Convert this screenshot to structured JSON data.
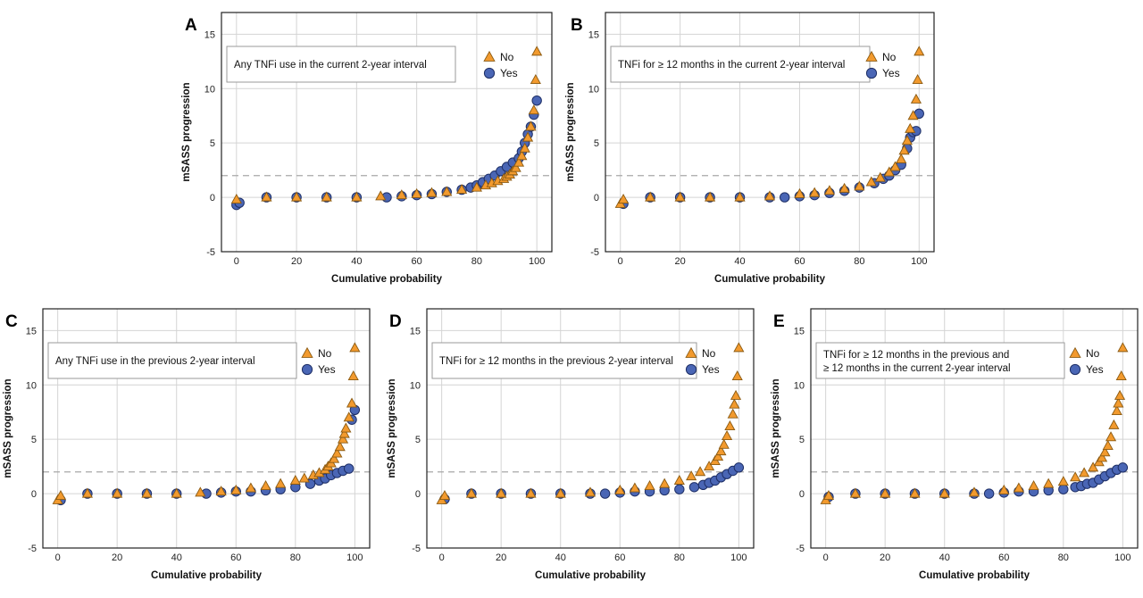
{
  "figure": {
    "colors": {
      "no_fill": "#F29A2E",
      "no_stroke": "#8A5A12",
      "yes_fill": "#4A66B5",
      "yes_stroke": "#1E2F66",
      "grid": "#D4D4D4",
      "threshold": "#A8A8A8",
      "frame": "#222222"
    }
  },
  "chart_data": [
    {
      "type": "scatter",
      "panel_label": "A",
      "annotation": "Any TNFi use in the current 2-year interval",
      "xlabel": "Cumulative probability",
      "ylabel": "mSASS progression",
      "xlim": [
        -5,
        105
      ],
      "ylim": [
        -5,
        17
      ],
      "x_ticks": [
        "0",
        "20",
        "40",
        "60",
        "80",
        "100"
      ],
      "y_ticks": [
        "-5",
        "0",
        "5",
        "10",
        "15"
      ],
      "grid": true,
      "legend": "top-right",
      "threshold_y": 2,
      "series": [
        {
          "name": "No",
          "marker": "triangle",
          "x": [
            0,
            10,
            20,
            30,
            40,
            48,
            55,
            60,
            65,
            70,
            75,
            80,
            83,
            85,
            87,
            89,
            90,
            91,
            92,
            93,
            94,
            95,
            96,
            97,
            98,
            99,
            99.6,
            100
          ],
          "y": [
            -0.2,
            0,
            0,
            0,
            0,
            0.1,
            0.2,
            0.3,
            0.4,
            0.5,
            0.7,
            0.9,
            1.1,
            1.3,
            1.5,
            1.7,
            1.9,
            2.1,
            2.4,
            2.7,
            3.2,
            3.8,
            4.5,
            5.5,
            6.5,
            8.0,
            10.8,
            13.4
          ]
        },
        {
          "name": "Yes",
          "marker": "circle",
          "x": [
            0,
            1,
            10,
            20,
            30,
            40,
            50,
            55,
            60,
            65,
            70,
            75,
            78,
            80,
            82,
            84,
            86,
            88,
            90,
            92,
            94,
            95,
            96,
            97,
            98,
            99,
            100
          ],
          "y": [
            -0.7,
            -0.5,
            0,
            0,
            0,
            0,
            0,
            0.1,
            0.2,
            0.3,
            0.5,
            0.7,
            0.9,
            1.1,
            1.4,
            1.7,
            2.0,
            2.4,
            2.8,
            3.2,
            3.6,
            4.2,
            5.0,
            5.8,
            6.5,
            7.6,
            8.9
          ]
        }
      ]
    },
    {
      "type": "scatter",
      "panel_label": "B",
      "annotation": "TNFi for ≥ 12 months in the current 2-year interval",
      "xlabel": "Cumulative probability",
      "ylabel": "mSASS progression",
      "xlim": [
        -5,
        105
      ],
      "ylim": [
        -5,
        17
      ],
      "x_ticks": [
        "0",
        "20",
        "40",
        "60",
        "80",
        "100"
      ],
      "y_ticks": [
        "-5",
        "0",
        "5",
        "10",
        "15"
      ],
      "grid": true,
      "legend": "top-right",
      "threshold_y": 2,
      "series": [
        {
          "name": "No",
          "marker": "triangle",
          "x": [
            0,
            1,
            10,
            20,
            30,
            40,
            50,
            60,
            65,
            70,
            75,
            80,
            84,
            87,
            90,
            92,
            94,
            95,
            96,
            97,
            98,
            99,
            99.5,
            100
          ],
          "y": [
            -0.6,
            -0.2,
            0,
            0,
            0,
            0,
            0.1,
            0.3,
            0.4,
            0.6,
            0.8,
            1.0,
            1.4,
            1.8,
            2.3,
            2.8,
            3.5,
            4.3,
            5.2,
            6.3,
            7.5,
            9.0,
            10.8,
            13.4
          ]
        },
        {
          "name": "Yes",
          "marker": "circle",
          "x": [
            1,
            10,
            20,
            30,
            40,
            50,
            55,
            60,
            65,
            70,
            75,
            80,
            85,
            88,
            90,
            92,
            94,
            96,
            97,
            98,
            99,
            100
          ],
          "y": [
            -0.6,
            0,
            0,
            0,
            0,
            0,
            0,
            0.1,
            0.2,
            0.4,
            0.6,
            0.9,
            1.3,
            1.7,
            2.0,
            2.5,
            3.0,
            4.5,
            5.5,
            6.0,
            6.1,
            7.7
          ]
        }
      ]
    },
    {
      "type": "scatter",
      "panel_label": "C",
      "annotation": "Any TNFi use in the previous 2-year interval",
      "xlabel": "Cumulative probability",
      "ylabel": "mSASS progression",
      "xlim": [
        -5,
        105
      ],
      "ylim": [
        -5,
        17
      ],
      "x_ticks": [
        "0",
        "20",
        "40",
        "60",
        "80",
        "100"
      ],
      "y_ticks": [
        "-5",
        "0",
        "5",
        "10",
        "15"
      ],
      "grid": true,
      "legend": "top-right",
      "threshold_y": 2,
      "series": [
        {
          "name": "No",
          "marker": "triangle",
          "x": [
            0,
            1,
            10,
            20,
            30,
            40,
            48,
            55,
            60,
            65,
            70,
            75,
            80,
            83,
            86,
            88,
            90,
            91,
            92,
            93,
            94,
            95,
            96,
            96.5,
            97,
            98,
            99,
            99.5,
            100
          ],
          "y": [
            -0.6,
            -0.2,
            0,
            0,
            0,
            0,
            0.1,
            0.2,
            0.3,
            0.5,
            0.7,
            0.9,
            1.2,
            1.4,
            1.7,
            1.9,
            2.2,
            2.5,
            2.8,
            3.2,
            3.7,
            4.3,
            5.0,
            5.5,
            6.0,
            7.0,
            8.3,
            10.8,
            13.4
          ]
        },
        {
          "name": "Yes",
          "marker": "circle",
          "x": [
            1,
            10,
            20,
            30,
            40,
            50,
            55,
            60,
            65,
            70,
            75,
            80,
            85,
            88,
            90,
            92,
            94,
            96,
            98,
            99,
            100
          ],
          "y": [
            -0.6,
            0,
            0,
            0,
            0,
            0,
            0.1,
            0.2,
            0.2,
            0.3,
            0.4,
            0.6,
            0.9,
            1.2,
            1.4,
            1.7,
            1.9,
            2.1,
            2.3,
            6.8,
            7.7
          ]
        }
      ]
    },
    {
      "type": "scatter",
      "panel_label": "D",
      "annotation": "TNFi for ≥ 12 months in the previous 2-year interval",
      "xlabel": "Cumulative probability",
      "ylabel": "mSASS progression",
      "xlim": [
        -5,
        105
      ],
      "ylim": [
        -5,
        17
      ],
      "x_ticks": [
        "0",
        "20",
        "40",
        "60",
        "80",
        "100"
      ],
      "y_ticks": [
        "-5",
        "0",
        "5",
        "10",
        "15"
      ],
      "grid": true,
      "legend": "top-right",
      "threshold_y": 2,
      "series": [
        {
          "name": "No",
          "marker": "triangle",
          "x": [
            0,
            1,
            10,
            20,
            30,
            40,
            50,
            60,
            65,
            70,
            75,
            80,
            84,
            87,
            90,
            92,
            93,
            94,
            95,
            96,
            97,
            98,
            98.5,
            99,
            99.5,
            100
          ],
          "y": [
            -0.6,
            -0.2,
            0,
            0,
            0,
            0,
            0.1,
            0.3,
            0.5,
            0.7,
            0.9,
            1.2,
            1.6,
            2.0,
            2.5,
            3.0,
            3.4,
            3.9,
            4.5,
            5.3,
            6.2,
            7.3,
            8.2,
            9.0,
            10.8,
            13.4
          ]
        },
        {
          "name": "Yes",
          "marker": "circle",
          "x": [
            1,
            10,
            20,
            30,
            40,
            50,
            55,
            60,
            65,
            70,
            75,
            80,
            85,
            88,
            90,
            92,
            94,
            96,
            98,
            100
          ],
          "y": [
            -0.5,
            0,
            0,
            0,
            0,
            0,
            0,
            0.1,
            0.2,
            0.2,
            0.3,
            0.4,
            0.6,
            0.8,
            1.0,
            1.2,
            1.5,
            1.8,
            2.1,
            2.4
          ]
        }
      ]
    },
    {
      "type": "scatter",
      "panel_label": "E",
      "annotation": "TNFi for ≥ 12 months in the previous and ≥ 12 months in the current 2-year interval",
      "annotation_lines": [
        "TNFi for ≥ 12 months in the previous and",
        "≥ 12 months in the current 2-year interval"
      ],
      "xlabel": "Cumulative probability",
      "ylabel": "mSASS progression",
      "xlim": [
        -5,
        105
      ],
      "ylim": [
        -5,
        17
      ],
      "x_ticks": [
        "0",
        "20",
        "40",
        "60",
        "80",
        "100"
      ],
      "y_ticks": [
        "-5",
        "0",
        "5",
        "10",
        "15"
      ],
      "grid": true,
      "legend": "top-right",
      "threshold_y": 2,
      "series": [
        {
          "name": "No",
          "marker": "triangle",
          "x": [
            0,
            1,
            10,
            20,
            30,
            40,
            50,
            60,
            65,
            70,
            75,
            80,
            84,
            87,
            90,
            92,
            93,
            94,
            95,
            96,
            97,
            98,
            98.5,
            99,
            99.5,
            100
          ],
          "y": [
            -0.6,
            -0.2,
            0,
            0,
            0,
            0,
            0.1,
            0.3,
            0.5,
            0.7,
            0.9,
            1.1,
            1.5,
            1.9,
            2.4,
            2.9,
            3.3,
            3.8,
            4.4,
            5.2,
            6.3,
            7.6,
            8.3,
            9.0,
            10.8,
            13.4
          ]
        },
        {
          "name": "Yes",
          "marker": "circle",
          "x": [
            1,
            10,
            20,
            30,
            40,
            50,
            55,
            60,
            65,
            70,
            75,
            80,
            84,
            86,
            88,
            90,
            92,
            94,
            96,
            98,
            100
          ],
          "y": [
            -0.3,
            0,
            0,
            0,
            0,
            0,
            0,
            0.1,
            0.2,
            0.2,
            0.3,
            0.4,
            0.6,
            0.7,
            0.9,
            1.0,
            1.3,
            1.6,
            1.9,
            2.2,
            2.4
          ]
        }
      ]
    }
  ]
}
